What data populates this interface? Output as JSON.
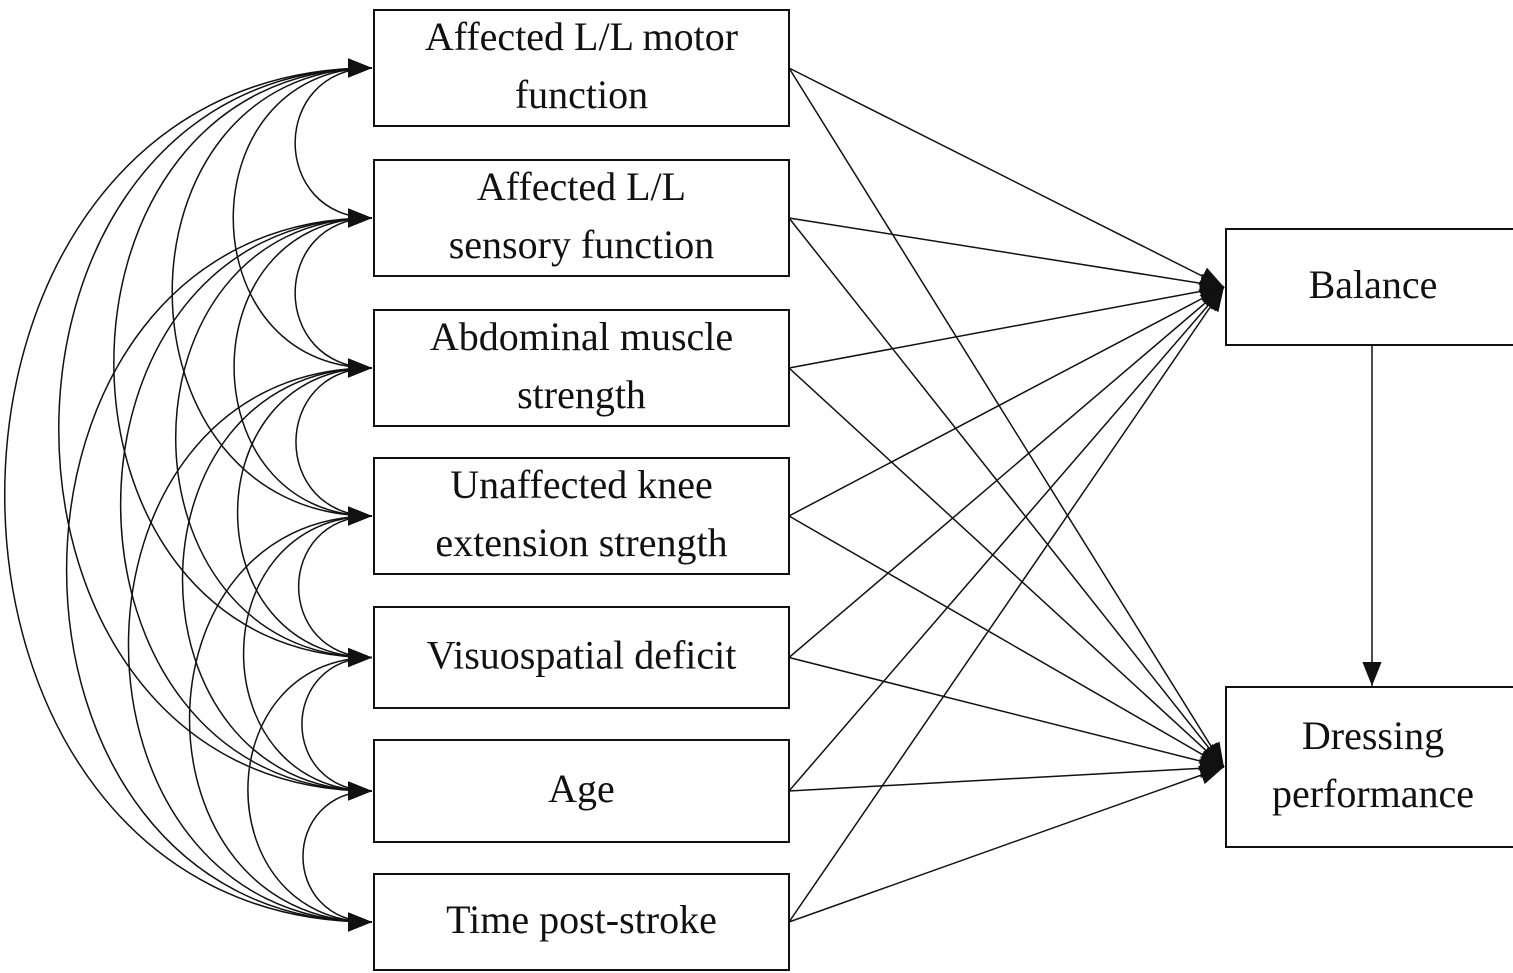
{
  "nodes": {
    "left": [
      {
        "lines": [
          "Affected L/L motor",
          "function"
        ]
      },
      {
        "lines": [
          "Affected L/L",
          "sensory function"
        ]
      },
      {
        "lines": [
          "Abdominal muscle",
          "strength"
        ]
      },
      {
        "lines": [
          "Unaffected knee",
          "extension strength"
        ]
      },
      {
        "lines": [
          "Visuospatial deficit"
        ]
      },
      {
        "lines": [
          "Age"
        ]
      },
      {
        "lines": [
          "Time post-stroke"
        ]
      }
    ],
    "outcomes": [
      {
        "lines": [
          "Balance"
        ]
      },
      {
        "lines": [
          "Dressing",
          "performance"
        ]
      }
    ]
  }
}
